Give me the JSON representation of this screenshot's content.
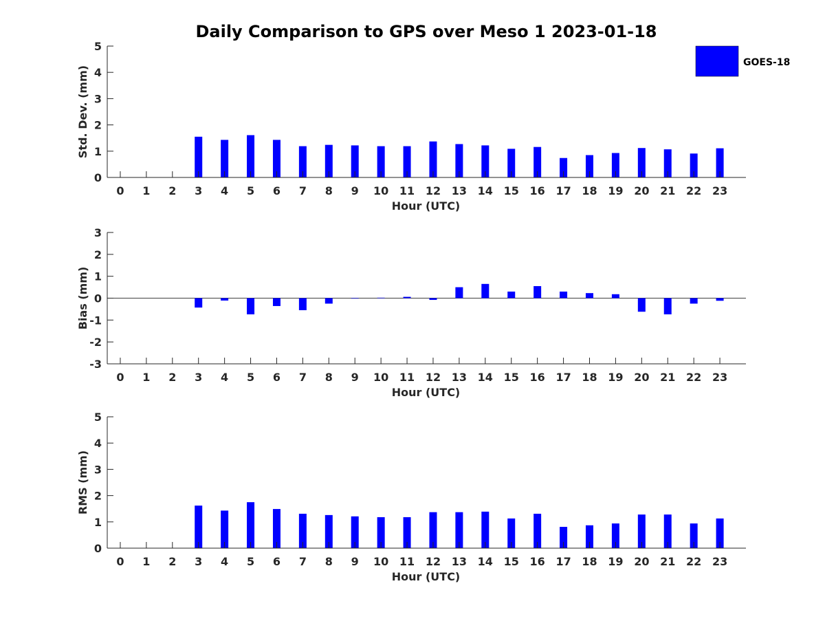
{
  "chart_data": {
    "type": "bar",
    "title": "Daily Comparison to GPS over Meso 1 2023-01-18",
    "legend": {
      "entries": [
        "GOES-18"
      ],
      "placement": "top-right"
    },
    "series_color": "#0000ff",
    "categories": [
      "0",
      "1",
      "2",
      "3",
      "4",
      "5",
      "6",
      "7",
      "8",
      "9",
      "10",
      "11",
      "12",
      "13",
      "14",
      "15",
      "16",
      "17",
      "18",
      "19",
      "20",
      "21",
      "22",
      "23"
    ],
    "panels": [
      {
        "ylabel": "Std. Dev. (mm)",
        "xlabel": "Hour (UTC)",
        "ylim": [
          0,
          5
        ],
        "yticks": [
          "0",
          "1",
          "2",
          "3",
          "4",
          "5"
        ],
        "series": [
          {
            "name": "GOES-18",
            "values": [
              null,
              null,
              null,
              1.55,
              1.43,
              1.61,
              1.43,
              1.19,
              1.24,
              1.22,
              1.19,
              1.19,
              1.37,
              1.27,
              1.22,
              1.09,
              1.16,
              0.74,
              0.85,
              0.93,
              1.12,
              1.07,
              0.91,
              1.11
            ]
          }
        ]
      },
      {
        "ylabel": "Bias (mm)",
        "xlabel": "Hour (UTC)",
        "ylim": [
          -3,
          3
        ],
        "yticks": [
          "-3",
          "-2",
          "-1",
          "0",
          "1",
          "2",
          "3"
        ],
        "series": [
          {
            "name": "GOES-18",
            "values": [
              null,
              null,
              null,
              -0.43,
              -0.11,
              -0.74,
              -0.36,
              -0.55,
              -0.25,
              -0.02,
              0.02,
              0.06,
              -0.08,
              0.5,
              0.65,
              0.3,
              0.55,
              0.3,
              0.23,
              0.18,
              -0.62,
              -0.74,
              -0.25,
              -0.12
            ]
          }
        ]
      },
      {
        "ylabel": "RMS (mm)",
        "xlabel": "Hour (UTC)",
        "ylim": [
          0,
          5
        ],
        "yticks": [
          "0",
          "1",
          "2",
          "3",
          "4",
          "5"
        ],
        "series": [
          {
            "name": "GOES-18",
            "values": [
              null,
              null,
              null,
              1.62,
              1.43,
              1.75,
              1.49,
              1.31,
              1.26,
              1.21,
              1.18,
              1.18,
              1.37,
              1.37,
              1.39,
              1.13,
              1.31,
              0.81,
              0.87,
              0.94,
              1.28,
              1.28,
              0.94,
              1.13
            ]
          }
        ]
      }
    ]
  }
}
